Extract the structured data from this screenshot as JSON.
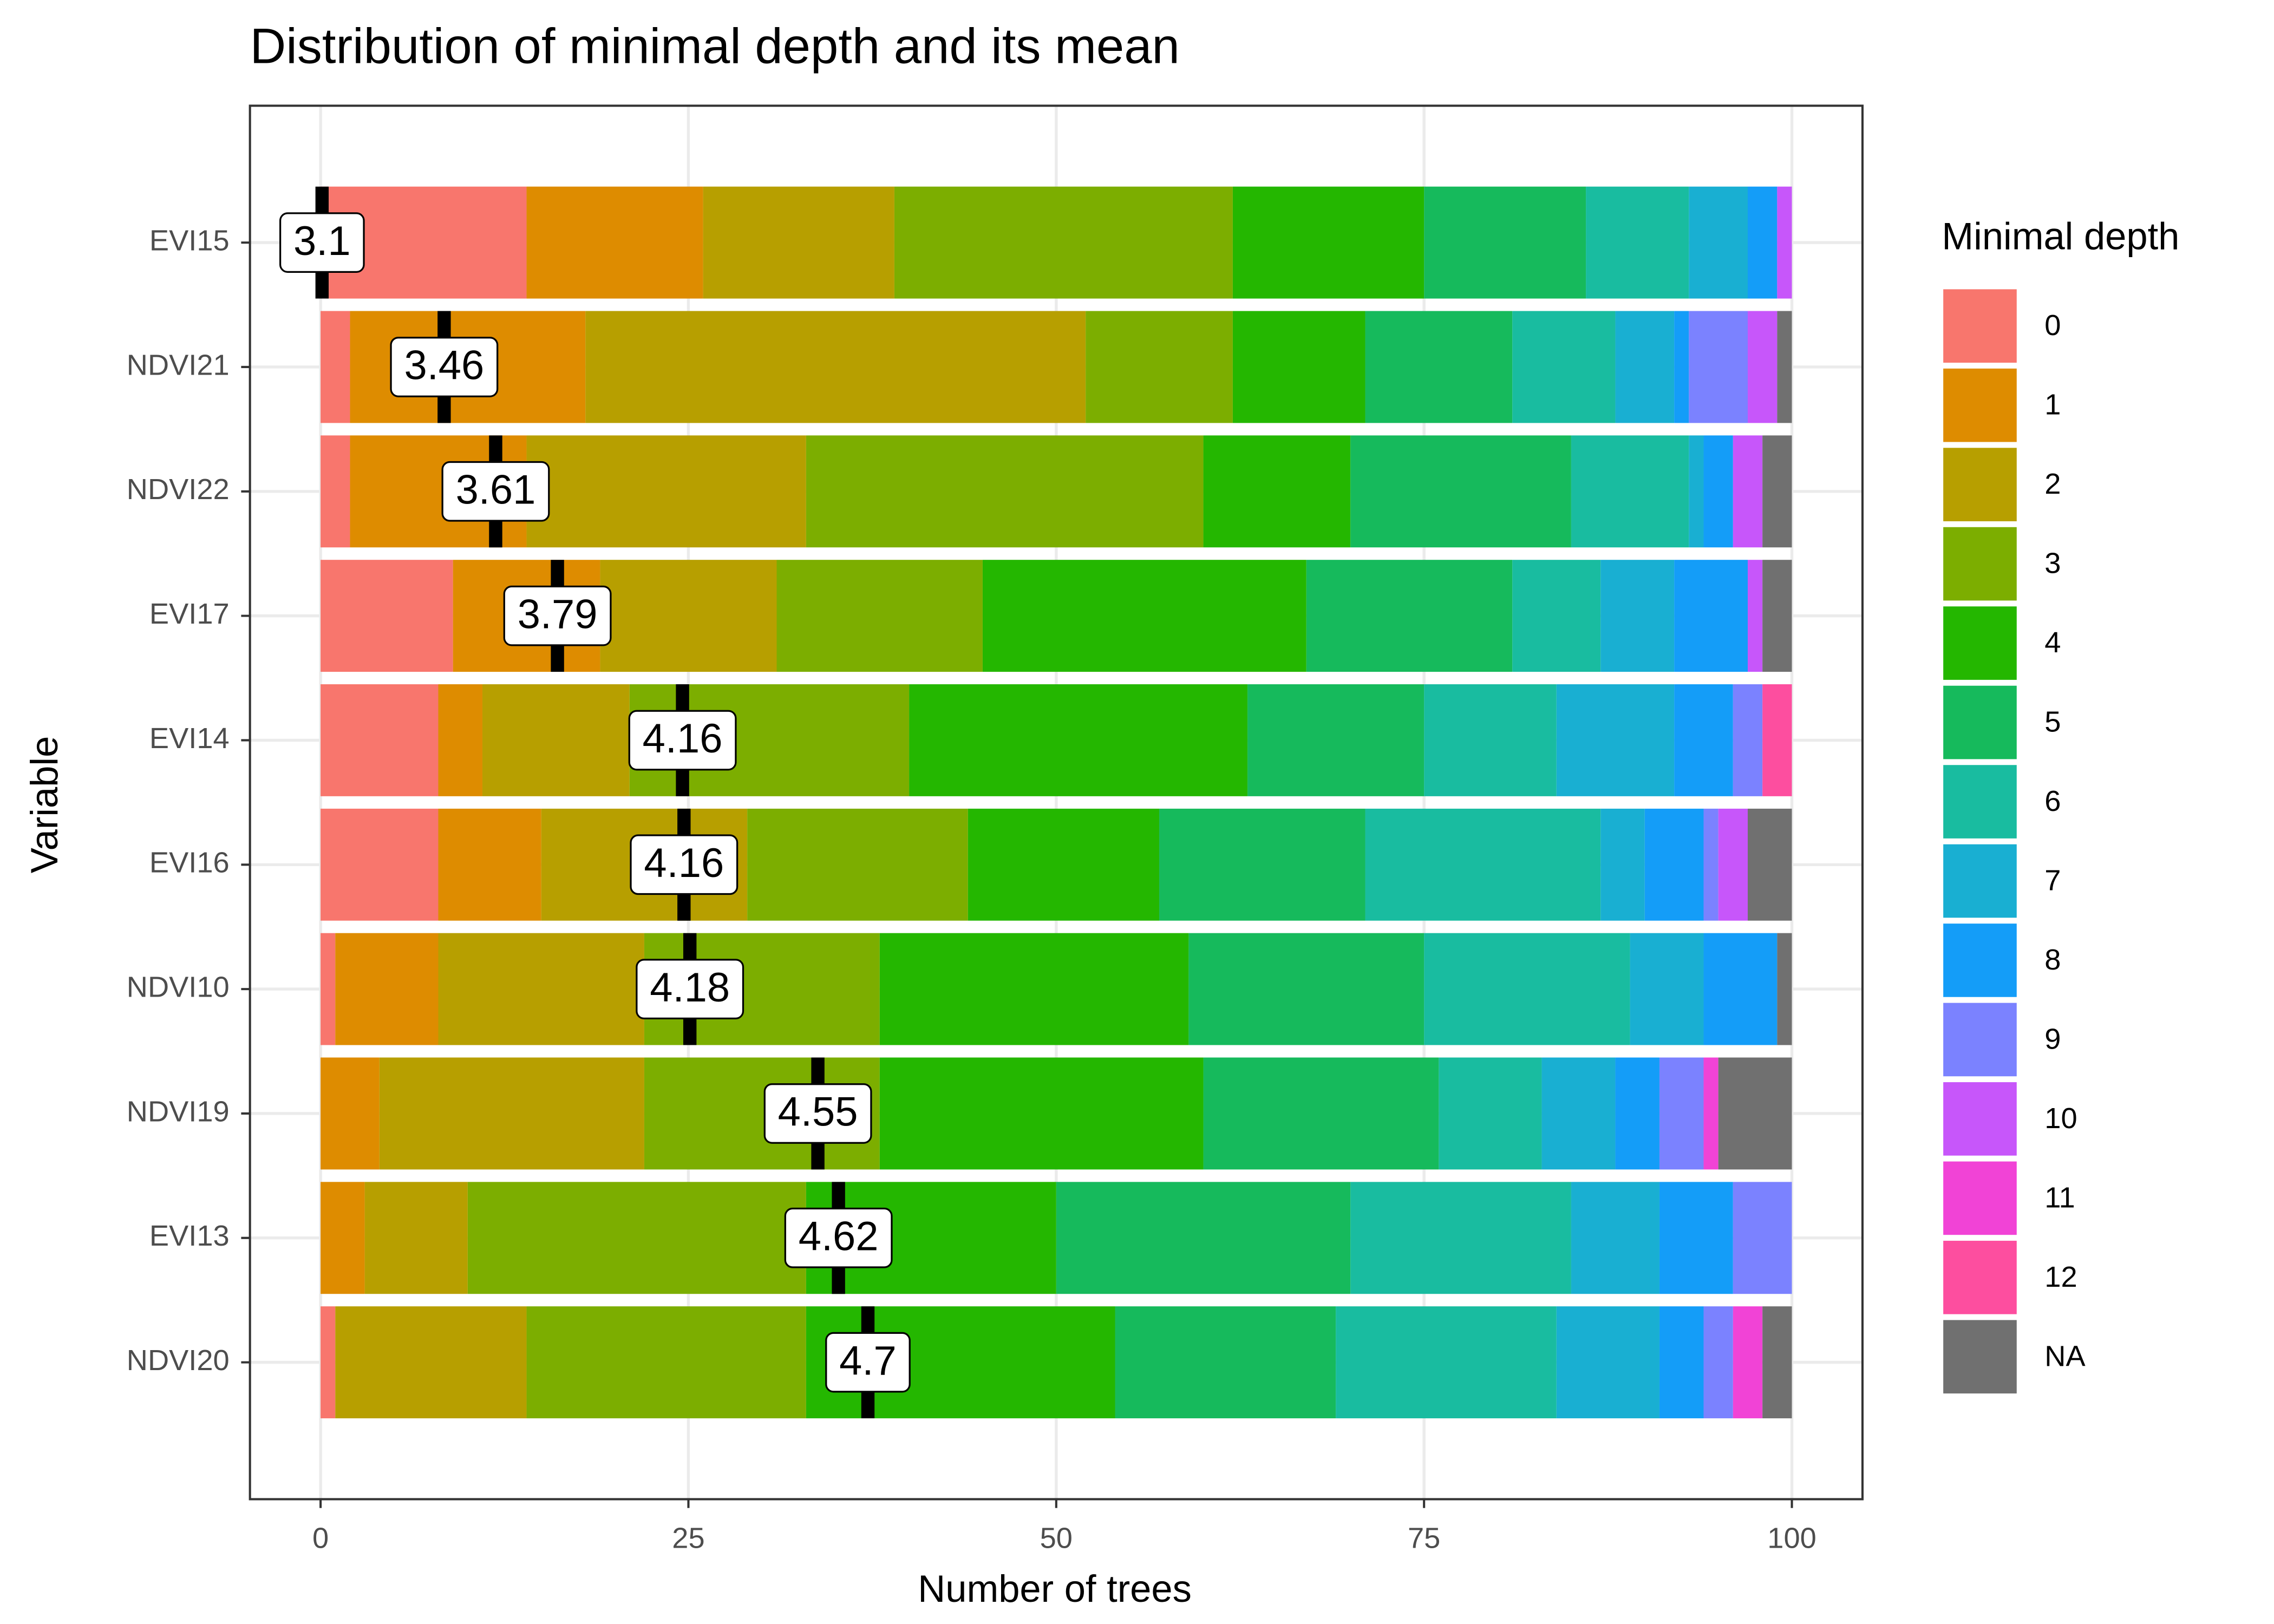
{
  "chart_data": {
    "type": "stacked_barh",
    "title": "Distribution of minimal depth and its mean",
    "x_label": "Number of trees",
    "y_label": "Variable",
    "legend_title": "Minimal depth",
    "legend_position": "right",
    "categories": [
      "EVI15",
      "NDVI21",
      "NDVI22",
      "EVI17",
      "EVI14",
      "EVI16",
      "NDVI10",
      "NDVI19",
      "EVI13",
      "NDVI20"
    ],
    "series": [
      {
        "name": "0",
        "color": "#F8766D",
        "values": [
          14,
          2,
          2,
          9,
          8,
          8,
          1,
          0,
          0,
          1
        ]
      },
      {
        "name": "1",
        "color": "#DE8C00",
        "values": [
          12,
          16,
          12,
          10,
          3,
          7,
          7,
          4,
          3,
          0
        ]
      },
      {
        "name": "2",
        "color": "#B79F00",
        "values": [
          13,
          34,
          19,
          12,
          10,
          14,
          14,
          18,
          7,
          13
        ]
      },
      {
        "name": "3",
        "color": "#7CAE00",
        "values": [
          23,
          10,
          27,
          14,
          19,
          15,
          16,
          16,
          23,
          19
        ]
      },
      {
        "name": "4",
        "color": "#24B700",
        "values": [
          13,
          9,
          10,
          22,
          23,
          13,
          21,
          22,
          17,
          21
        ]
      },
      {
        "name": "5",
        "color": "#16BA5C",
        "values": [
          11,
          10,
          15,
          14,
          12,
          14,
          16,
          16,
          20,
          15
        ]
      },
      {
        "name": "6",
        "color": "#19BCA0",
        "values": [
          7,
          7,
          8,
          6,
          9,
          16,
          14,
          7,
          15,
          15
        ]
      },
      {
        "name": "7",
        "color": "#19AFD2",
        "values": [
          4,
          4,
          1,
          5,
          8,
          3,
          5,
          5,
          6,
          7
        ]
      },
      {
        "name": "8",
        "color": "#149DF8",
        "values": [
          2,
          1,
          2,
          5,
          4,
          4,
          5,
          3,
          5,
          3
        ]
      },
      {
        "name": "9",
        "color": "#7B82FF",
        "values": [
          0,
          4,
          0,
          0,
          2,
          1,
          0,
          3,
          4,
          2
        ]
      },
      {
        "name": "10",
        "color": "#C756FA",
        "values": [
          1,
          2,
          2,
          1,
          0,
          2,
          0,
          0,
          0,
          0
        ]
      },
      {
        "name": "11",
        "color": "#F143D6",
        "values": [
          0,
          0,
          0,
          0,
          0,
          0,
          0,
          1,
          0,
          2
        ]
      },
      {
        "name": "12",
        "color": "#FD4E9F",
        "values": [
          0,
          0,
          0,
          0,
          2,
          0,
          0,
          0,
          0,
          0
        ]
      },
      {
        "name": "NA",
        "color": "#707070",
        "values": [
          0,
          1,
          2,
          2,
          0,
          3,
          1,
          5,
          0,
          2
        ]
      }
    ],
    "mean_x": [
      0.1,
      8.4,
      11.9,
      16.1,
      24.6,
      24.7,
      25.1,
      33.8,
      35.2,
      37.2
    ],
    "mean_values": [
      3.1,
      3.46,
      3.61,
      3.79,
      4.16,
      4.16,
      4.18,
      4.55,
      4.62,
      4.7
    ],
    "xlim": [
      -4.8,
      104.8
    ],
    "xticks": [
      0,
      25,
      50,
      75,
      100
    ],
    "grid": true
  }
}
